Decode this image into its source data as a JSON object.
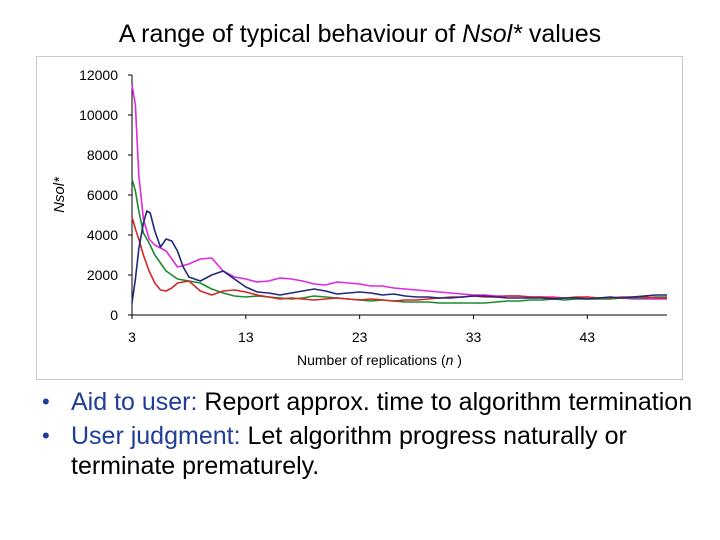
{
  "title_prefix": "A range of typical behaviour of ",
  "title_italic": "Nsol*",
  "title_suffix": " values",
  "bullets": [
    {
      "lead": "Aid to user:",
      "text": "  Report approx. time to algorithm termination"
    },
    {
      "lead": "User judgment:",
      "text": "  Let algorithm progress naturally or terminate prematurely."
    }
  ],
  "chart_data": {
    "type": "line",
    "xlabel_prefix": "Number of replications (",
    "xlabel_italic": "n",
    "xlabel_suffix": " )",
    "ylabel": "Nsol*",
    "xlim": [
      3,
      50
    ],
    "ylim": [
      0,
      12000
    ],
    "xticks": [
      3,
      13,
      23,
      33,
      43
    ],
    "yticks": [
      0,
      2000,
      4000,
      6000,
      8000,
      10000,
      12000
    ],
    "grid": false,
    "series": [
      {
        "color": "#e028e0",
        "x": [
          3,
          3.3,
          3.6,
          4,
          4.5,
          5,
          6,
          7,
          8,
          9,
          10,
          11,
          12,
          13,
          14,
          15,
          16,
          17,
          18,
          19,
          20,
          21,
          22,
          23,
          24,
          25,
          26,
          27,
          28,
          29,
          30,
          31,
          32,
          33,
          34,
          35,
          36,
          37,
          38,
          39,
          40,
          41,
          42,
          43,
          44,
          45,
          46,
          47,
          48,
          49,
          50
        ],
        "y": [
          11500,
          10500,
          7000,
          4800,
          3800,
          3500,
          3200,
          2400,
          2550,
          2800,
          2850,
          2200,
          1900,
          1800,
          1650,
          1700,
          1850,
          1800,
          1700,
          1550,
          1500,
          1650,
          1600,
          1550,
          1450,
          1450,
          1350,
          1300,
          1250,
          1200,
          1150,
          1100,
          1050,
          1000,
          1000,
          950,
          950,
          950,
          900,
          900,
          900,
          850,
          850,
          900,
          850,
          850,
          850,
          800,
          800,
          800,
          800
        ]
      },
      {
        "color": "#1d8a2e",
        "x": [
          3,
          3.3,
          3.6,
          4,
          4.5,
          5,
          6,
          7,
          8,
          9,
          10,
          11,
          12,
          13,
          14,
          15,
          16,
          17,
          18,
          19,
          20,
          21,
          22,
          23,
          24,
          25,
          26,
          27,
          28,
          29,
          30,
          31,
          32,
          33,
          34,
          35,
          36,
          37,
          38,
          39,
          40,
          41,
          42,
          43,
          44,
          45,
          46,
          47,
          48,
          49,
          50
        ],
        "y": [
          6800,
          6200,
          5200,
          4100,
          3600,
          3000,
          2200,
          1800,
          1700,
          1600,
          1300,
          1100,
          950,
          900,
          950,
          900,
          850,
          800,
          850,
          950,
          900,
          850,
          800,
          750,
          700,
          750,
          700,
          650,
          650,
          650,
          600,
          600,
          600,
          600,
          600,
          650,
          700,
          700,
          750,
          750,
          800,
          750,
          800,
          800,
          800,
          800,
          850,
          850,
          850,
          900,
          900
        ]
      },
      {
        "color": "#d22828",
        "x": [
          3,
          3.3,
          3.6,
          4,
          4.5,
          5,
          5.5,
          6,
          6.5,
          7,
          8,
          9,
          10,
          11,
          12,
          13,
          14,
          15,
          16,
          17,
          18,
          19,
          20,
          21,
          22,
          23,
          24,
          25,
          26,
          27,
          28,
          29,
          30,
          31,
          32,
          33,
          34,
          35,
          36,
          37,
          38,
          39,
          40,
          41,
          42,
          43,
          44,
          45,
          46,
          47,
          48,
          49,
          50
        ],
        "y": [
          4900,
          4300,
          3800,
          3000,
          2200,
          1600,
          1250,
          1200,
          1350,
          1600,
          1700,
          1200,
          1000,
          1200,
          1250,
          1150,
          1000,
          900,
          800,
          850,
          800,
          750,
          800,
          850,
          800,
          750,
          800,
          750,
          700,
          750,
          750,
          800,
          850,
          900,
          900,
          950,
          900,
          900,
          950,
          950,
          900,
          900,
          850,
          850,
          900,
          900,
          850,
          850,
          900,
          900,
          900,
          850,
          850
        ]
      },
      {
        "color": "#1e2a78",
        "x": [
          3,
          3.3,
          3.6,
          4,
          4.3,
          4.6,
          5,
          5.5,
          6,
          6.5,
          7,
          7.5,
          8,
          9,
          10,
          11,
          12,
          13,
          14,
          15,
          16,
          17,
          18,
          19,
          20,
          21,
          22,
          23,
          24,
          25,
          26,
          27,
          28,
          29,
          30,
          31,
          32,
          33,
          34,
          35,
          36,
          37,
          38,
          39,
          40,
          41,
          42,
          43,
          44,
          45,
          46,
          47,
          48,
          49,
          50
        ],
        "y": [
          600,
          1800,
          3300,
          4600,
          5200,
          5100,
          4200,
          3400,
          3800,
          3700,
          3200,
          2400,
          1900,
          1700,
          2000,
          2200,
          1800,
          1400,
          1150,
          1100,
          1000,
          1100,
          1200,
          1300,
          1200,
          1050,
          1100,
          1150,
          1100,
          1000,
          1050,
          950,
          900,
          900,
          850,
          850,
          900,
          950,
          950,
          900,
          850,
          850,
          850,
          850,
          800,
          850,
          850,
          800,
          850,
          900,
          850,
          900,
          950,
          1000,
          1000
        ]
      }
    ]
  }
}
